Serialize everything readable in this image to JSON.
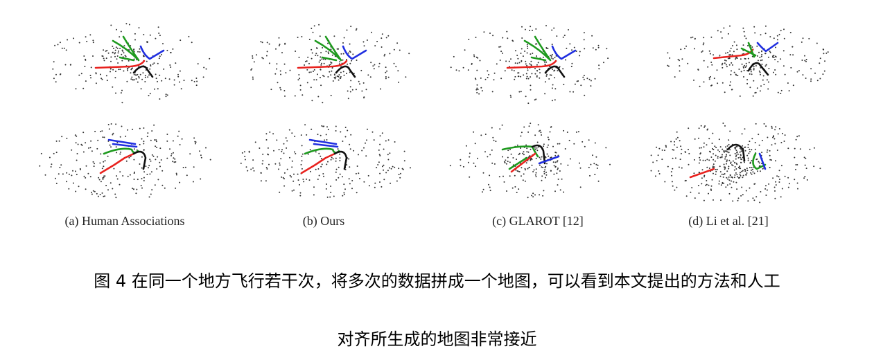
{
  "subfigures": [
    {
      "caption": "(a) Human Associations"
    },
    {
      "caption": "(b) Ours"
    },
    {
      "caption": "(c) GLAROT [12]"
    },
    {
      "caption": "(d) Li et al. [21]"
    }
  ],
  "figure_caption": {
    "line1": "图 4 在同一个地方飞行若干次，将多次的数据拼成一个地图，可以看到本文提出的方法和人工",
    "line2": "对齐所生成的地图非常接近"
  },
  "colors": {
    "red": "#e8221e",
    "green": "#1e9a1e",
    "blue": "#1f2ee0",
    "black": "#111111",
    "points": "#333333"
  }
}
